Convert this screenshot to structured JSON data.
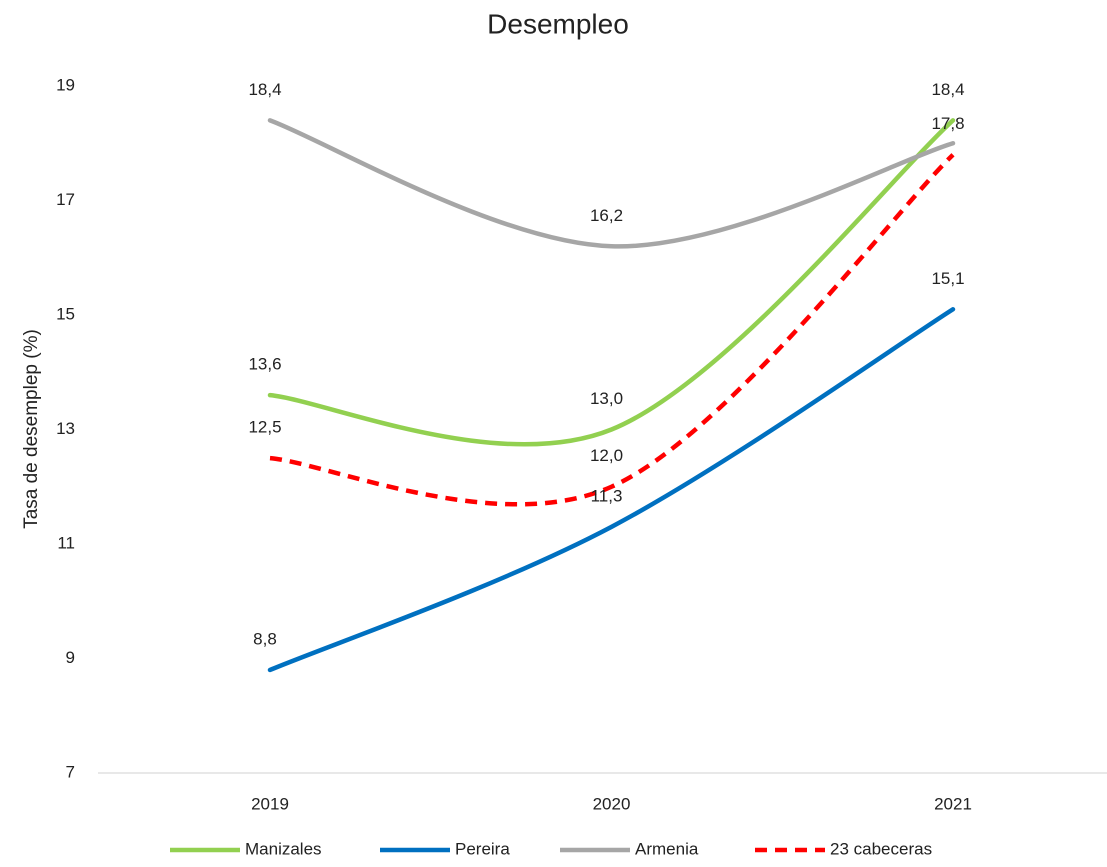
{
  "chart_data": {
    "type": "line",
    "title": "Desempleo",
    "y_label": "Tasa de desemplep (%)",
    "categories": [
      "2019",
      "2020",
      "2021"
    ],
    "series": [
      {
        "name": "Manizales",
        "color": "#92d050",
        "values": [
          13.6,
          13.0,
          18.4
        ],
        "value_labels": [
          "13,6",
          "13,0",
          "18,4"
        ]
      },
      {
        "name": "Pereira",
        "color": "#0070c0",
        "values": [
          8.8,
          11.3,
          15.1
        ],
        "value_labels": [
          "8,8",
          "11,3",
          "15,1"
        ]
      },
      {
        "name": "Armenia",
        "color": "#a6a6a6",
        "values": [
          18.4,
          16.2,
          18.0
        ],
        "value_labels": [
          "18,4",
          "16,2",
          null
        ]
      },
      {
        "name": "23 cabeceras",
        "color": "#ff0000",
        "dashed": true,
        "values": [
          12.5,
          12.0,
          17.8
        ],
        "value_labels": [
          "12,5",
          "12,0",
          "17,8"
        ]
      }
    ],
    "ylim": [
      7,
      19
    ],
    "yticks": [
      7,
      9,
      11,
      13,
      15,
      17,
      19
    ],
    "grid": false,
    "legend": "bottom",
    "smooth": true
  }
}
